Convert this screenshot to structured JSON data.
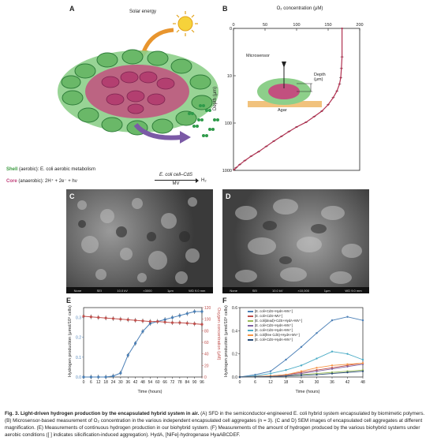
{
  "panels": {
    "A": {
      "label": "A",
      "solar": "Solar energy",
      "shell_prefix": "Shell",
      "shell_text": " (aerobic): E. coli aerobic metabolism",
      "core_prefix": "Core",
      "core_text": " (anaerobic): 2H⁺ + 2e⁻ + hν",
      "reaction_top": "E. coli cell–CdS",
      "reaction_bottom": "MV",
      "product": "H₂",
      "h2_mark": "H₂"
    },
    "B": {
      "label": "B",
      "xlabel": "O₂ concentration (μM)",
      "ylabel": "Depth (μm)",
      "microsensor": "Microsensor",
      "depth_label": "Depth\n(μm)",
      "agar": "Agar",
      "xticks": [
        "0",
        "50",
        "100",
        "150",
        "200"
      ],
      "yticks": [
        "0",
        "10",
        "100",
        "1000"
      ]
    },
    "C": {
      "label": "C",
      "bar": [
        "None",
        "SEI",
        "10.0 kV",
        "×3000",
        "1μm",
        "WD 9.0 mm"
      ]
    },
    "D": {
      "label": "D",
      "bar": [
        "None",
        "SEI",
        "10.0 kV",
        "×10,000",
        "1μm",
        "WD 9.0 mm"
      ]
    },
    "E": {
      "label": "E",
      "ylabel_left": "Hydrogen production (μmol/10⁹ cells)",
      "ylabel_right": "Oxygen concentration (μM)",
      "xlabel": "Time (hours)"
    },
    "F": {
      "label": "F",
      "ylabel": "Hydrogen production (μmol/10⁹ cells)",
      "xlabel": "Time (hours)",
      "legend": [
        "[E. coli+CdS+HydA+MV⁺]",
        "[E. coli+CdS+MV⁺]",
        "[E. coli(dead)+CdS+HydA+MV⁺]",
        "[E. coli+CdS+HydA+MV⁺]",
        "[E. coli+CdS+HydA+MV⁺]",
        "[E. coli(free CdS)+HydA+MV⁺]",
        "[E. coli+CdS+HydA+MV⁺]"
      ]
    }
  },
  "chart_data": [
    {
      "panel": "B",
      "type": "line",
      "xlabel": "O₂ concentration (μM)",
      "ylabel": "Depth (μm)",
      "xlim": [
        0,
        200
      ],
      "ylim": [
        0,
        1000
      ],
      "y_scale": "log",
      "color": "#b03050",
      "points": [
        [
          172,
          0
        ],
        [
          172,
          3
        ],
        [
          171,
          6
        ],
        [
          170,
          10
        ],
        [
          168,
          14
        ],
        [
          164,
          20
        ],
        [
          158,
          28
        ],
        [
          150,
          40
        ],
        [
          140,
          55
        ],
        [
          128,
          72
        ],
        [
          115,
          95
        ],
        [
          100,
          120
        ],
        [
          88,
          150
        ],
        [
          76,
          190
        ],
        [
          64,
          240
        ],
        [
          52,
          310
        ],
        [
          40,
          400
        ],
        [
          28,
          500
        ],
        [
          18,
          620
        ],
        [
          10,
          750
        ],
        [
          4,
          880
        ],
        [
          1,
          960
        ]
      ]
    },
    {
      "panel": "E",
      "type": "line",
      "xlabel": "Time (hours)",
      "x": [
        0,
        6,
        12,
        18,
        24,
        30,
        36,
        42,
        48,
        54,
        60,
        66,
        72,
        78,
        84,
        90,
        96
      ],
      "xticks": [
        "0",
        "6",
        "12",
        "18",
        "24",
        "30",
        "36",
        "42",
        "48",
        "54",
        "60",
        "66",
        "72",
        "78",
        "84",
        "90",
        "96"
      ],
      "y_left_lim": [
        0,
        0.35
      ],
      "y_left_ticks": [
        "0.0",
        "0.1",
        "0.2",
        "0.3"
      ],
      "y_right_lim": [
        0,
        120
      ],
      "y_right_ticks": [
        "0",
        "20",
        "40",
        "60",
        "80",
        "100",
        "120"
      ],
      "series": [
        {
          "axis": "left",
          "color": "#4a7fb6",
          "values": [
            0,
            0,
            0,
            0,
            0.005,
            0.02,
            0.11,
            0.17,
            0.23,
            0.27,
            0.28,
            0.29,
            0.3,
            0.31,
            0.32,
            0.33,
            0.33
          ]
        },
        {
          "axis": "right",
          "color": "#c0504d",
          "values": [
            105,
            104,
            103,
            102,
            101,
            100,
            99,
            98,
            97,
            96,
            96,
            95,
            94,
            94,
            93,
            92,
            91
          ]
        }
      ]
    },
    {
      "panel": "F",
      "type": "line",
      "xlabel": "Time (hours)",
      "x": [
        0,
        6,
        12,
        18,
        24,
        30,
        36,
        42,
        48
      ],
      "xticks": [
        "0",
        "6",
        "12",
        "18",
        "24",
        "30",
        "36",
        "42",
        "48"
      ],
      "ylim": [
        0,
        0.6
      ],
      "yticks": [
        "0.0",
        "0.2",
        "0.4",
        "0.6"
      ],
      "series": [
        {
          "color": "#4a7fb6",
          "values": [
            0,
            0.02,
            0.05,
            0.15,
            0.26,
            0.38,
            0.49,
            0.52,
            0.49
          ]
        },
        {
          "color": "#c0504d",
          "values": [
            0,
            0.005,
            0.01,
            0.02,
            0.04,
            0.06,
            0.08,
            0.1,
            0.12
          ]
        },
        {
          "color": "#9bbb59",
          "values": [
            0,
            0.002,
            0.005,
            0.01,
            0.02,
            0.03,
            0.04,
            0.05,
            0.06
          ]
        },
        {
          "color": "#8064a2",
          "values": [
            0,
            0.003,
            0.008,
            0.015,
            0.03,
            0.05,
            0.07,
            0.09,
            0.11
          ]
        },
        {
          "color": "#4bacc6",
          "values": [
            0,
            0.01,
            0.03,
            0.06,
            0.1,
            0.16,
            0.22,
            0.2,
            0.15
          ]
        },
        {
          "color": "#f79646",
          "values": [
            0,
            0.004,
            0.01,
            0.02,
            0.05,
            0.08,
            0.1,
            0.11,
            0.12
          ]
        },
        {
          "color": "#2c4d75",
          "values": [
            0,
            0.002,
            0.004,
            0.008,
            0.015,
            0.02,
            0.03,
            0.04,
            0.05
          ]
        }
      ]
    }
  ],
  "caption": {
    "fig": "Fig. 3. ",
    "title": "Light-driven hydrogen production by the encapsulated hybrid system in air.",
    "body": " (A) SFD in the semiconductor-engineered E. coli hybrid system encapsulated by biomimetic polymers. (B) Microsensor-based measurement of O₂ concentration in the various independent encapsulated cell aggregates (n = 3). (C and D) SEM images of encapsulated cell aggregates at different magnification. (E) Measurements of continuous hydrogen production in our biohybrid system. (F) Measurements of the amount of hydrogen produced by the various biohybrid systems under aerobic conditions ([ ] indicates silicification-induced aggregation). HydA, [NiFe]-hydrogenase HyaABCDEF."
  }
}
